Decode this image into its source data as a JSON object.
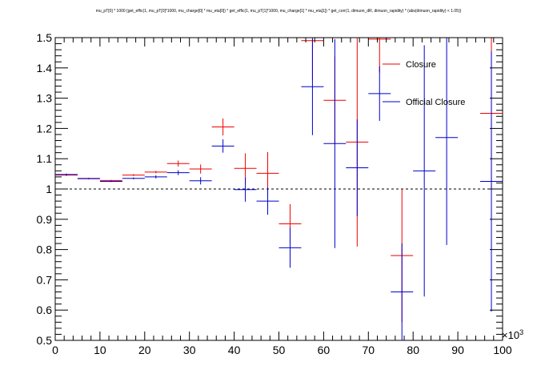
{
  "chart_data": {
    "type": "scatter",
    "title": "mu_pT[0] * 1000 {get_effic(1, mu_pT[0]*1000, mu_charge[0] * mu_eta[0]) * get_effic(1, mu_pT[1]*1000, mu_charge[1] * mu_eta[1]) * get_corr(1, dimuon_dR, dimuon_rapidity) * (abs(dimuon_rapidity) < 1.05)}",
    "xlim": [
      0,
      100
    ],
    "ylim": [
      0.5,
      1.5
    ],
    "x_multiplier_label": "×10",
    "x_multiplier_exp": "3",
    "x_ticks": [
      0,
      10,
      20,
      30,
      40,
      50,
      60,
      70,
      80,
      90,
      100
    ],
    "y_ticks": [
      0.5,
      0.6,
      0.7,
      0.8,
      0.9,
      1,
      1.1,
      1.2,
      1.3,
      1.4,
      1.5
    ],
    "reference_line": 1,
    "legend": "top-right",
    "series": [
      {
        "name": "Closure",
        "color": "#ee0000",
        "points": [
          {
            "x": 2.5,
            "xerr": 2.5,
            "y": 1.046,
            "elo": 0.003,
            "ehi": 0.003
          },
          {
            "x": 7.5,
            "xerr": 2.5,
            "y": 1.035,
            "elo": 0.002,
            "ehi": 0.002
          },
          {
            "x": 12.5,
            "xerr": 2.5,
            "y": 1.028,
            "elo": 0.002,
            "ehi": 0.002
          },
          {
            "x": 17.5,
            "xerr": 2.5,
            "y": 1.046,
            "elo": 0.003,
            "ehi": 0.003
          },
          {
            "x": 22.5,
            "xerr": 2.5,
            "y": 1.056,
            "elo": 0.004,
            "ehi": 0.004
          },
          {
            "x": 27.5,
            "xerr": 2.5,
            "y": 1.084,
            "elo": 0.01,
            "ehi": 0.01
          },
          {
            "x": 32.5,
            "xerr": 2.5,
            "y": 1.066,
            "elo": 0.015,
            "ehi": 0.015
          },
          {
            "x": 37.5,
            "xerr": 2.5,
            "y": 1.205,
            "elo": 0.028,
            "ehi": 0.028
          },
          {
            "x": 42.5,
            "xerr": 2.5,
            "y": 1.068,
            "elo": 0.05,
            "ehi": 0.05
          },
          {
            "x": 47.5,
            "xerr": 2.5,
            "y": 1.052,
            "elo": 0.07,
            "ehi": 0.07
          },
          {
            "x": 52.5,
            "xerr": 2.5,
            "y": 0.885,
            "elo": 0.065,
            "ehi": 0.065
          },
          {
            "x": 57.5,
            "xerr": 2.5,
            "y": 1.49,
            "elo": 0.13,
            "ehi": 0.13
          },
          {
            "x": 62.5,
            "xerr": 2.5,
            "y": 1.293,
            "elo": 0.145,
            "ehi": 0.145
          },
          {
            "x": 67.5,
            "xerr": 2.5,
            "y": 1.155,
            "elo": 0.345,
            "ehi": 0.345
          },
          {
            "x": 72.5,
            "xerr": 2.5,
            "y": 1.495,
            "elo": 0.11,
            "ehi": 0.11
          },
          {
            "x": 77.5,
            "xerr": 2.5,
            "y": 0.78,
            "elo": 0.22,
            "ehi": 0.22
          },
          {
            "x": 97.5,
            "xerr": 2.5,
            "y": 1.25,
            "elo": 0.25,
            "ehi": 0.25
          }
        ]
      },
      {
        "name": "Official Closure",
        "color": "#0000cc",
        "points": [
          {
            "x": 2.5,
            "xerr": 2.5,
            "y": 1.048,
            "elo": 0.003,
            "ehi": 0.003
          },
          {
            "x": 7.5,
            "xerr": 2.5,
            "y": 1.034,
            "elo": 0.002,
            "ehi": 0.002
          },
          {
            "x": 12.5,
            "xerr": 2.5,
            "y": 1.025,
            "elo": 0.002,
            "ehi": 0.002
          },
          {
            "x": 17.5,
            "xerr": 2.5,
            "y": 1.035,
            "elo": 0.003,
            "ehi": 0.003
          },
          {
            "x": 22.5,
            "xerr": 2.5,
            "y": 1.04,
            "elo": 0.005,
            "ehi": 0.005
          },
          {
            "x": 27.5,
            "xerr": 2.5,
            "y": 1.054,
            "elo": 0.008,
            "ehi": 0.008
          },
          {
            "x": 32.5,
            "xerr": 2.5,
            "y": 1.027,
            "elo": 0.012,
            "ehi": 0.012
          },
          {
            "x": 37.5,
            "xerr": 2.5,
            "y": 1.142,
            "elo": 0.022,
            "ehi": 0.022
          },
          {
            "x": 42.5,
            "xerr": 2.5,
            "y": 0.998,
            "elo": 0.04,
            "ehi": 0.04
          },
          {
            "x": 47.5,
            "xerr": 2.5,
            "y": 0.96,
            "elo": 0.045,
            "ehi": 0.045
          },
          {
            "x": 52.5,
            "xerr": 2.5,
            "y": 0.806,
            "elo": 0.066,
            "ehi": 0.066
          },
          {
            "x": 57.5,
            "xerr": 2.5,
            "y": 1.338,
            "elo": 0.16,
            "ehi": 0.16
          },
          {
            "x": 62.5,
            "xerr": 2.5,
            "y": 1.15,
            "elo": 0.345,
            "ehi": 0.345
          },
          {
            "x": 67.5,
            "xerr": 2.5,
            "y": 1.07,
            "elo": 0.16,
            "ehi": 0.16
          },
          {
            "x": 72.5,
            "xerr": 2.5,
            "y": 1.315,
            "elo": 0.09,
            "ehi": 0.09
          },
          {
            "x": 77.5,
            "xerr": 2.5,
            "y": 0.66,
            "elo": 0.16,
            "ehi": 0.16
          },
          {
            "x": 82.5,
            "xerr": 2.5,
            "y": 1.06,
            "elo": 0.415,
            "ehi": 0.415
          },
          {
            "x": 87.5,
            "xerr": 2.5,
            "y": 1.17,
            "elo": 0.355,
            "ehi": 0.355
          },
          {
            "x": 97.5,
            "xerr": 2.5,
            "y": 1.025,
            "elo": 0.43,
            "ehi": 0.43
          }
        ]
      }
    ]
  }
}
